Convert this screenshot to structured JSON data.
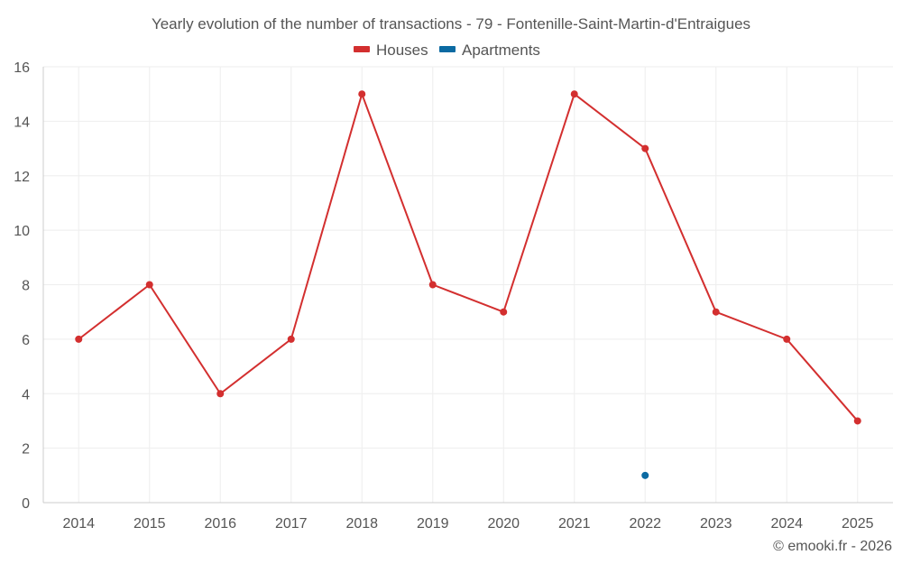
{
  "chart_data": {
    "type": "line",
    "title": "Yearly evolution of the number of transactions - 79 - Fontenille-Saint-Martin-d'Entraigues",
    "xlabel": "",
    "ylabel": "",
    "categories": [
      "2014",
      "2015",
      "2016",
      "2017",
      "2018",
      "2019",
      "2020",
      "2021",
      "2022",
      "2023",
      "2024",
      "2025"
    ],
    "ylim": [
      0,
      16
    ],
    "yticks": [
      0,
      2,
      4,
      6,
      8,
      10,
      12,
      14,
      16
    ],
    "grid": true,
    "legend_position": "top-center",
    "series": [
      {
        "name": "Houses",
        "color": "#d32f2f",
        "values": [
          6,
          8,
          4,
          6,
          15,
          8,
          7,
          15,
          13,
          7,
          6,
          3
        ]
      },
      {
        "name": "Apartments",
        "color": "#0b6aa2",
        "values": [
          null,
          null,
          null,
          null,
          null,
          null,
          null,
          null,
          1,
          null,
          null,
          null
        ]
      }
    ]
  },
  "footer": "© emooki.fr - 2026"
}
